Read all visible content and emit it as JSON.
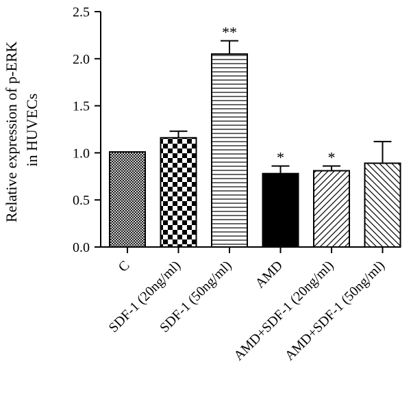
{
  "chart_data": {
    "type": "bar",
    "ylabel_lines": [
      "Relative expression of p-ERK",
      "in HUVECs"
    ],
    "xlabel": "",
    "ylim": [
      0,
      2.5
    ],
    "yticks": [
      0.0,
      0.5,
      1.0,
      1.5,
      2.0,
      2.5
    ],
    "ytick_labels": [
      "0.0",
      "0.5",
      "1.0",
      "1.5",
      "2.0",
      "2.5"
    ],
    "grid": false,
    "categories": [
      "C",
      "SDF-1 (20ng/ml)",
      "SDF-1 (50ng/ml)",
      "AMD",
      "AMD+SDF-1 (20ng/ml)",
      "AMD+SDF-1 (50ng/ml)"
    ],
    "values": [
      1.01,
      1.16,
      2.05,
      0.78,
      0.81,
      0.89
    ],
    "errors": [
      0.0,
      0.07,
      0.14,
      0.08,
      0.05,
      0.23
    ],
    "significance": [
      "",
      "",
      "**",
      "*",
      "*",
      ""
    ],
    "patterns": [
      "crosshatch",
      "checker",
      "hlines",
      "solid",
      "diag-right",
      "diag-left"
    ]
  }
}
